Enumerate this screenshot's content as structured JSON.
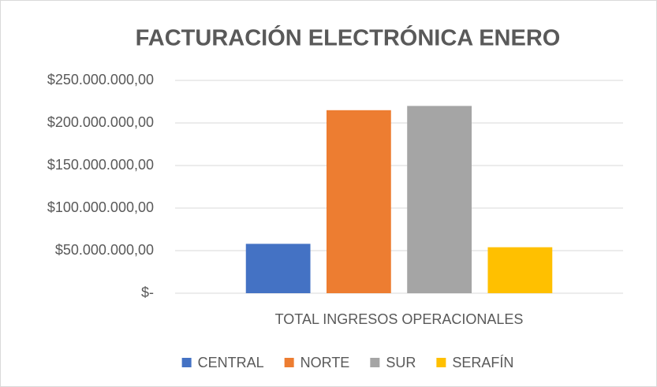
{
  "chart_data": {
    "type": "bar",
    "title": "FACTURACIÓN ELECTRÓNICA ENERO",
    "categories": [
      "TOTAL INGRESOS OPERACIONALES"
    ],
    "series": [
      {
        "name": "CENTRAL",
        "color": "#4472c4",
        "values": [
          58000000
        ]
      },
      {
        "name": "NORTE",
        "color": "#ed7d31",
        "values": [
          215000000
        ]
      },
      {
        "name": "SUR",
        "color": "#a5a5a5",
        "values": [
          220000000
        ]
      },
      {
        "name": "SERAFÍN",
        "color": "#ffc000",
        "values": [
          54000000
        ]
      }
    ],
    "ylim": [
      0,
      250000000
    ],
    "yticks": [
      {
        "value": 0,
        "label": "$-"
      },
      {
        "value": 50000000,
        "label": "$50.000.000,00"
      },
      {
        "value": 100000000,
        "label": "$100.000.000,00"
      },
      {
        "value": 150000000,
        "label": "$150.000.000,00"
      },
      {
        "value": 200000000,
        "label": "$200.000.000,00"
      },
      {
        "value": 250000000,
        "label": "$250.000.000,00"
      }
    ],
    "grid": true,
    "legend": "bottom"
  }
}
